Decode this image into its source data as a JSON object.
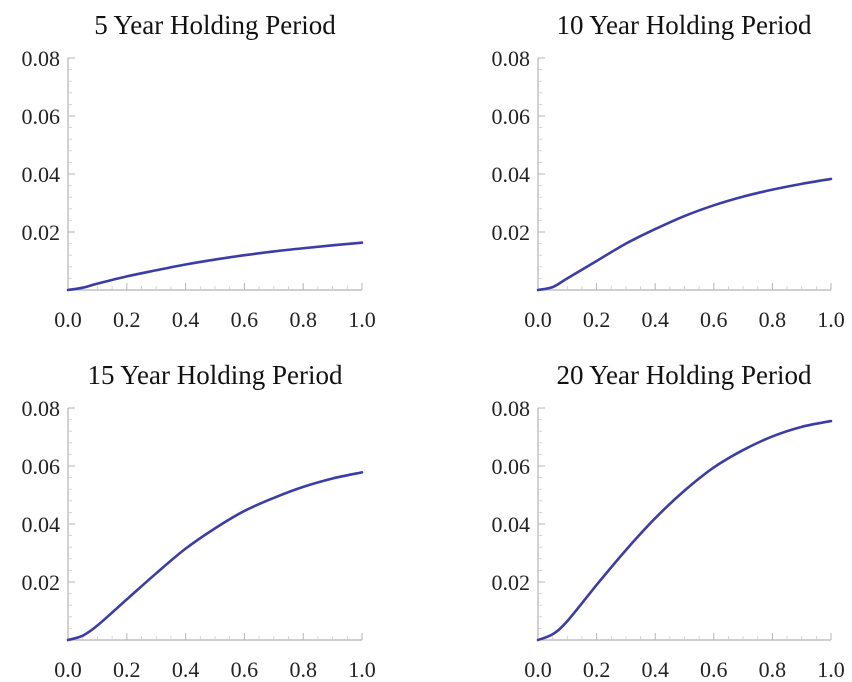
{
  "chart_data": [
    {
      "type": "line",
      "title": "5 Year Holding Period",
      "xlim": [
        0,
        1
      ],
      "ylim": [
        0,
        0.08
      ],
      "xticks": [
        "0.0",
        "0.2",
        "0.4",
        "0.6",
        "0.8",
        "1.0"
      ],
      "yticks": [
        "0.02",
        "0.04",
        "0.06",
        "0.08"
      ],
      "series": [
        {
          "x": [
            0,
            0.05,
            0.1,
            0.2,
            0.3,
            0.4,
            0.5,
            0.6,
            0.7,
            0.8,
            0.9,
            1.0
          ],
          "y": [
            0,
            0.0008,
            0.0022,
            0.0047,
            0.0068,
            0.0088,
            0.0105,
            0.012,
            0.0133,
            0.0144,
            0.0154,
            0.0163
          ]
        }
      ]
    },
    {
      "type": "line",
      "title": "10 Year Holding Period",
      "xlim": [
        0,
        1
      ],
      "ylim": [
        0,
        0.08
      ],
      "xticks": [
        "0.0",
        "0.2",
        "0.4",
        "0.6",
        "0.8",
        "1.0"
      ],
      "yticks": [
        "0.02",
        "0.04",
        "0.06",
        "0.08"
      ],
      "series": [
        {
          "x": [
            0,
            0.05,
            0.1,
            0.2,
            0.3,
            0.4,
            0.5,
            0.6,
            0.7,
            0.8,
            0.9,
            1.0
          ],
          "y": [
            0,
            0.001,
            0.004,
            0.01,
            0.016,
            0.021,
            0.0255,
            0.0292,
            0.0322,
            0.0346,
            0.0366,
            0.0383
          ]
        }
      ]
    },
    {
      "type": "line",
      "title": "15 Year Holding Period",
      "xlim": [
        0,
        1
      ],
      "ylim": [
        0,
        0.08
      ],
      "xticks": [
        "0.0",
        "0.2",
        "0.4",
        "0.6",
        "0.8",
        "1.0"
      ],
      "yticks": [
        "0.02",
        "0.04",
        "0.06",
        "0.08"
      ],
      "series": [
        {
          "x": [
            0,
            0.05,
            0.1,
            0.2,
            0.3,
            0.4,
            0.5,
            0.6,
            0.7,
            0.8,
            0.9,
            1.0
          ],
          "y": [
            0,
            0.0015,
            0.005,
            0.014,
            0.023,
            0.0315,
            0.0385,
            0.0445,
            0.049,
            0.0528,
            0.0557,
            0.0578
          ]
        }
      ]
    },
    {
      "type": "line",
      "title": "20 Year Holding Period",
      "xlim": [
        0,
        1
      ],
      "ylim": [
        0,
        0.08
      ],
      "xticks": [
        "0.0",
        "0.2",
        "0.4",
        "0.6",
        "0.8",
        "1.0"
      ],
      "yticks": [
        "0.02",
        "0.04",
        "0.06",
        "0.08"
      ],
      "series": [
        {
          "x": [
            0,
            0.05,
            0.1,
            0.2,
            0.3,
            0.4,
            0.5,
            0.6,
            0.7,
            0.8,
            0.9,
            1.0
          ],
          "y": [
            0,
            0.002,
            0.0065,
            0.019,
            0.031,
            0.042,
            0.0515,
            0.0595,
            0.0655,
            0.0702,
            0.0735,
            0.0755
          ]
        }
      ]
    }
  ],
  "style": {
    "line_color": "#3c3ca8"
  }
}
